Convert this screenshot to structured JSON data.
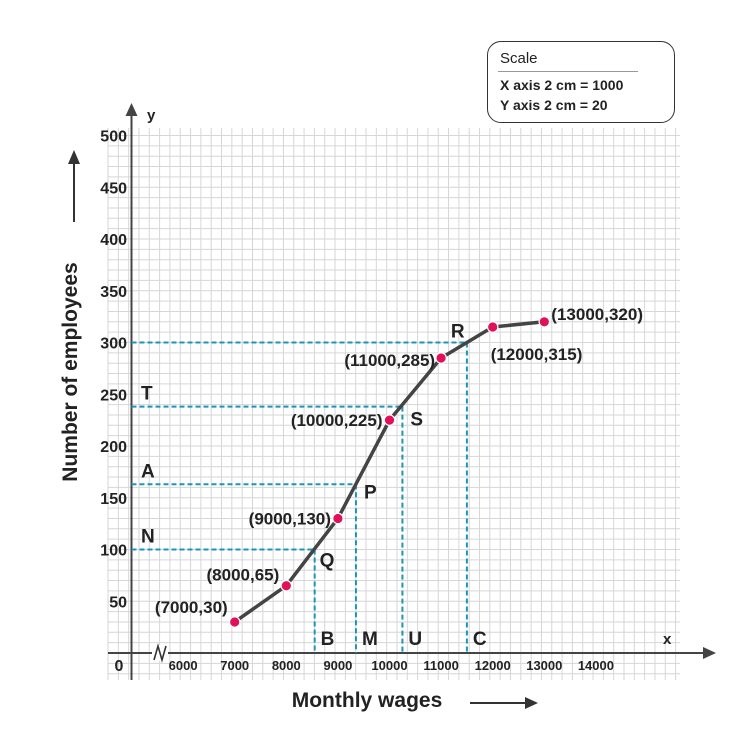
{
  "scale_box": {
    "title": "Scale",
    "x_line": "X axis 2 cm = 1000",
    "y_line": "Y axis 2 cm = 20"
  },
  "colors": {
    "curve": "#444444",
    "point": "#e0105a",
    "guide": "#1b95b8",
    "grid": "#d6d6d6"
  },
  "chart_data": {
    "type": "line",
    "title": "",
    "xlabel": "Monthly wages",
    "ylabel": "Number of employees",
    "x_axis_letter": "x",
    "y_axis_letter": "y",
    "origin_label": "0",
    "xlim": [
      5000,
      15000
    ],
    "ylim": [
      0,
      500
    ],
    "x_ticks": [
      6000,
      7000,
      8000,
      9000,
      10000,
      11000,
      12000,
      13000,
      14000
    ],
    "y_ticks": [
      50,
      100,
      150,
      200,
      250,
      300,
      350,
      400,
      450,
      500
    ],
    "grid": true,
    "series": [
      {
        "x": [
          7000,
          8000,
          9000,
          10000,
          11000,
          12000,
          13000
        ],
        "y": [
          30,
          65,
          130,
          225,
          285,
          315,
          320
        ],
        "labels": [
          "(7000,30)",
          "(8000,65)",
          "(9000,130)",
          "(10000,225)",
          "(11000,285)",
          "(12000,315)",
          "(13000,320)"
        ]
      }
    ],
    "guides": [
      {
        "y": 100,
        "x": 8550,
        "y_label": "N",
        "curve_label": "Q",
        "x_label": "B"
      },
      {
        "y": 163,
        "x": 9350,
        "y_label": "A",
        "curve_label": "P",
        "x_label": "M"
      },
      {
        "y": 238,
        "x": 10250,
        "y_label": "T",
        "curve_label": "S",
        "x_label": "U"
      },
      {
        "y": 300,
        "x": 11500,
        "y_label": "",
        "curve_label": "R",
        "x_label": "C"
      }
    ]
  }
}
